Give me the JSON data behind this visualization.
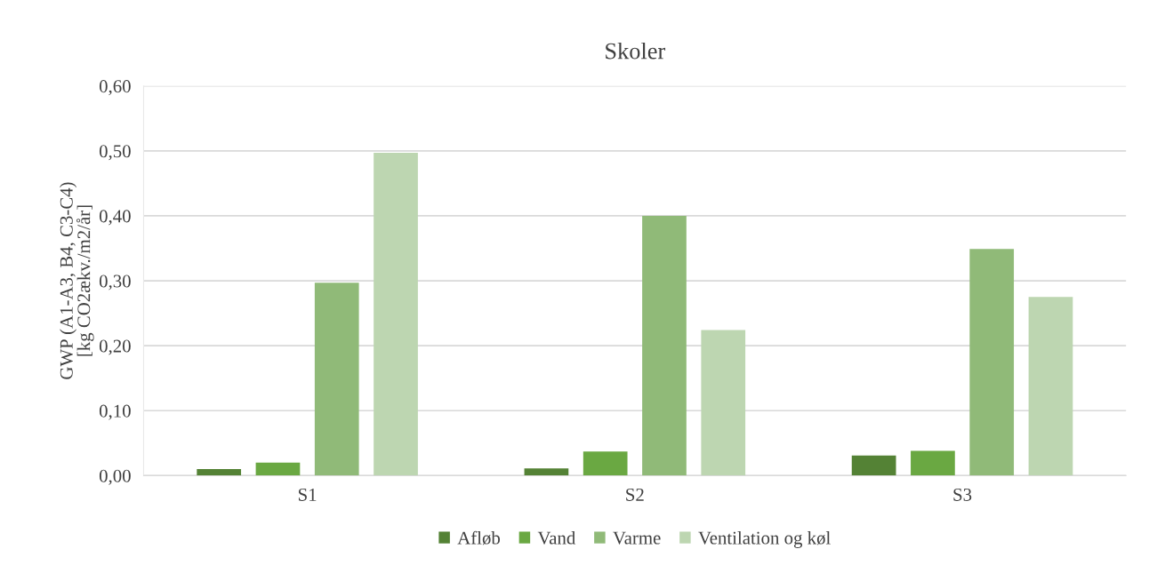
{
  "chart_data": {
    "type": "bar",
    "title": "Skoler",
    "ylabel": "GWP (A1-A3, B4, C3-C4)\n[kg CO2ækv./m2/år]",
    "categories": [
      "S1",
      "S2",
      "S3"
    ],
    "series": [
      {
        "name": "Afløb",
        "color": "#548235",
        "values": [
          0.01,
          0.011,
          0.031
        ]
      },
      {
        "name": "Vand",
        "color": "#6aa842",
        "values": [
          0.02,
          0.037,
          0.038
        ]
      },
      {
        "name": "Varme",
        "color": "#90ba78",
        "values": [
          0.297,
          0.4,
          0.349
        ]
      },
      {
        "name": "Ventilation og køl",
        "color": "#bdd6b1",
        "values": [
          0.497,
          0.224,
          0.275
        ]
      }
    ],
    "ylim": [
      0,
      0.6
    ],
    "yticks": [
      {
        "value": 0,
        "label": "0,00"
      },
      {
        "value": 0.1,
        "label": "0,10"
      },
      {
        "value": 0.2,
        "label": "0,20"
      },
      {
        "value": 0.3,
        "label": "0,30"
      },
      {
        "value": 0.4,
        "label": "0,40"
      },
      {
        "value": 0.5,
        "label": "0,50"
      },
      {
        "value": 0.6,
        "label": "0,60"
      }
    ],
    "grid": "y",
    "legend": "bottom"
  }
}
